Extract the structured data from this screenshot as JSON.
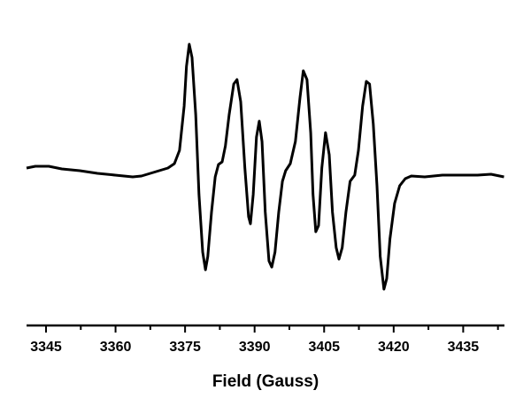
{
  "chart_data": {
    "type": "line",
    "x_label": "Field (Gauss)",
    "x": [
      3340.8,
      3342.7,
      3345.6,
      3348.4,
      3352.3,
      3356.1,
      3359.9,
      3363.7,
      3365.6,
      3367.5,
      3369.4,
      3371.3,
      3372.7,
      3373.8,
      3374.8,
      3375.3,
      3375.9,
      3376.5,
      3377.3,
      3378.0,
      3378.8,
      3379.4,
      3379.9,
      3380.7,
      3381.5,
      3382.2,
      3383.0,
      3383.7,
      3384.5,
      3385.5,
      3386.2,
      3387.0,
      3387.9,
      3388.7,
      3389.1,
      3389.7,
      3390.4,
      3391.0,
      3391.6,
      3392.3,
      3393.1,
      3393.7,
      3394.4,
      3395.2,
      3396.0,
      3396.7,
      3397.7,
      3398.8,
      3399.8,
      3400.5,
      3401.3,
      3402.1,
      3402.6,
      3403.2,
      3403.8,
      3404.5,
      3405.3,
      3406.1,
      3406.8,
      3407.6,
      3408.2,
      3408.9,
      3409.7,
      3410.6,
      3411.6,
      3412.4,
      3413.3,
      3414.1,
      3414.8,
      3415.6,
      3416.4,
      3417.1,
      3417.9,
      3418.5,
      3419.2,
      3420.2,
      3421.3,
      3422.5,
      3423.8,
      3426.7,
      3430.5,
      3434.3,
      3438.1,
      3441.0,
      3443.8
    ],
    "series": [
      {
        "color": "#000000",
        "values": [
          2,
          4,
          4,
          1,
          -1,
          -4,
          -6,
          -8,
          -7,
          -4,
          -1,
          2,
          7,
          22,
          72,
          117,
          142,
          127,
          62,
          -28,
          -93,
          -113,
          -98,
          -48,
          -8,
          6,
          9,
          27,
          62,
          97,
          102,
          77,
          2,
          -53,
          -61,
          -28,
          37,
          55,
          32,
          -48,
          -103,
          -110,
          -93,
          -48,
          -13,
          -1,
          7,
          32,
          82,
          112,
          102,
          42,
          -28,
          -70,
          -63,
          2,
          42,
          17,
          -48,
          -88,
          -101,
          -88,
          -48,
          -13,
          -6,
          22,
          72,
          100,
          97,
          52,
          -18,
          -98,
          -135,
          -123,
          -78,
          -38,
          -18,
          -10,
          -7,
          -8,
          -6,
          -6,
          -6,
          -5,
          -8
        ]
      }
    ],
    "xlim": [
      3340.8,
      3443.9
    ],
    "xticks": [
      3345,
      3360,
      3375,
      3390,
      3405,
      3420,
      3435
    ],
    "xminorticks": [
      3352.5,
      3367.5,
      3382.5,
      3397.5,
      3412.5,
      3427.5,
      3442.5
    ],
    "ylim": [
      -176,
      162
    ]
  }
}
